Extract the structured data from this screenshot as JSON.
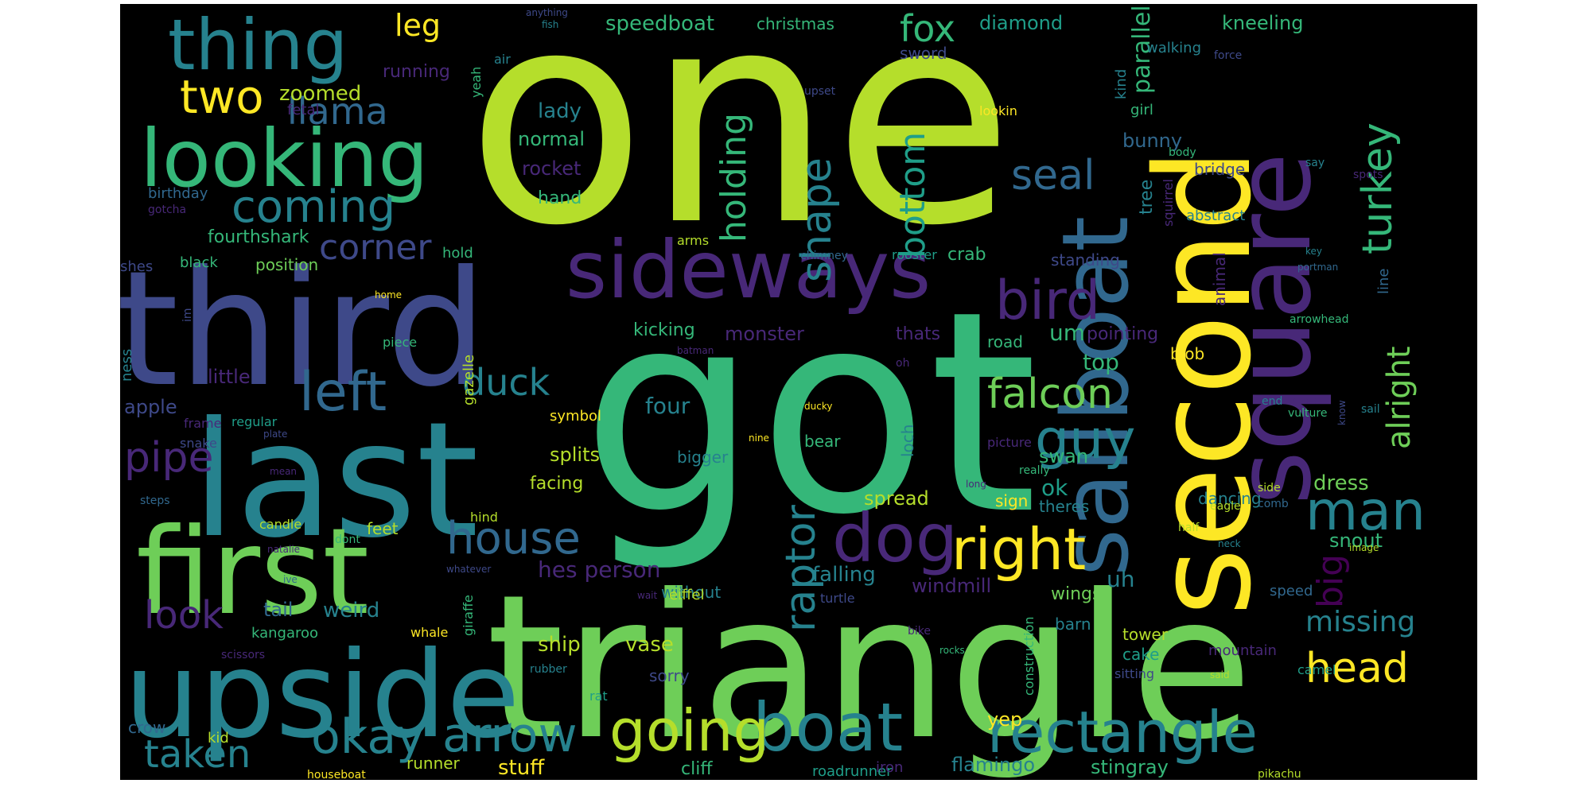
{
  "palette": {
    "yellow": "#fde725",
    "lime": "#b5de2b",
    "green": "#6ece58",
    "emerald": "#35b779",
    "teal": "#1f9e89",
    "cyan": "#26828e",
    "blue": "#31688e",
    "indigo": "#3e4989",
    "purple": "#482878",
    "dark_purple": "#440154"
  },
  "words": [
    {
      "text": "one",
      "color": "lime"
    },
    {
      "text": "got",
      "color": "emerald"
    },
    {
      "text": "triangle",
      "color": "green"
    },
    {
      "text": "third",
      "color": "indigo"
    },
    {
      "text": "last",
      "color": "cyan"
    },
    {
      "text": "second",
      "color": "yellow"
    },
    {
      "text": "first",
      "color": "green"
    },
    {
      "text": "upside",
      "color": "cyan"
    },
    {
      "text": "square",
      "color": "purple"
    },
    {
      "text": "sailboat",
      "color": "blue"
    },
    {
      "text": "sideways",
      "color": "purple"
    },
    {
      "text": "looking",
      "color": "emerald"
    },
    {
      "text": "thing",
      "color": "cyan"
    },
    {
      "text": "boat",
      "color": "cyan"
    },
    {
      "text": "rectangle",
      "color": "cyan"
    },
    {
      "text": "dog",
      "color": "purple"
    },
    {
      "text": "right",
      "color": "yellow"
    },
    {
      "text": "going",
      "color": "lime"
    },
    {
      "text": "guy",
      "color": "cyan"
    },
    {
      "text": "man",
      "color": "cyan"
    },
    {
      "text": "left",
      "color": "blue"
    },
    {
      "text": "arrow",
      "color": "cyan"
    },
    {
      "text": "okay",
      "color": "cyan"
    },
    {
      "text": "bird",
      "color": "purple"
    },
    {
      "text": "turkey",
      "color": "emerald"
    },
    {
      "text": "two",
      "color": "yellow"
    },
    {
      "text": "coming",
      "color": "cyan"
    },
    {
      "text": "house",
      "color": "blue"
    },
    {
      "text": "falcon",
      "color": "green"
    },
    {
      "text": "head",
      "color": "yellow"
    },
    {
      "text": "raptor",
      "color": "cyan"
    },
    {
      "text": "shape",
      "color": "cyan"
    },
    {
      "text": "seal",
      "color": "blue"
    },
    {
      "text": "bottom",
      "color": "teal"
    },
    {
      "text": "holding",
      "color": "emerald"
    },
    {
      "text": "fox",
      "color": "emerald"
    },
    {
      "text": "pipe",
      "color": "purple"
    },
    {
      "text": "look",
      "color": "purple"
    },
    {
      "text": "taken",
      "color": "cyan"
    },
    {
      "text": "duck",
      "color": "cyan"
    },
    {
      "text": "llama",
      "color": "blue"
    },
    {
      "text": "corner",
      "color": "indigo"
    },
    {
      "text": "big",
      "color": "dark_purple"
    },
    {
      "text": "alright",
      "color": "green"
    },
    {
      "text": "missing",
      "color": "cyan"
    },
    {
      "text": "leg",
      "color": "yellow"
    },
    {
      "text": "parallelogram",
      "color": "emerald"
    },
    {
      "text": "kneeling",
      "color": "emerald"
    },
    {
      "text": "speedboat",
      "color": "emerald"
    },
    {
      "text": "christmas",
      "color": "emerald"
    },
    {
      "text": "diamond",
      "color": "teal"
    },
    {
      "text": "sword",
      "color": "indigo"
    },
    {
      "text": "walking",
      "color": "cyan"
    },
    {
      "text": "running",
      "color": "purple"
    },
    {
      "text": "zoomed",
      "color": "lime"
    },
    {
      "text": "fetal",
      "color": "purple"
    },
    {
      "text": "lady",
      "color": "cyan"
    },
    {
      "text": "normal",
      "color": "emerald"
    },
    {
      "text": "rocket",
      "color": "purple"
    },
    {
      "text": "hand",
      "color": "emerald"
    },
    {
      "text": "bunny",
      "color": "blue"
    },
    {
      "text": "kind",
      "color": "cyan"
    },
    {
      "text": "girl",
      "color": "emerald"
    },
    {
      "text": "tree",
      "color": "cyan"
    },
    {
      "text": "squirrel",
      "color": "purple"
    },
    {
      "text": "bridge",
      "color": "indigo"
    },
    {
      "text": "abstract",
      "color": "cyan"
    },
    {
      "text": "animal",
      "color": "purple"
    },
    {
      "text": "standing",
      "color": "indigo"
    },
    {
      "text": "crab",
      "color": "emerald"
    },
    {
      "text": "fourthshark",
      "color": "emerald"
    },
    {
      "text": "position",
      "color": "green"
    },
    {
      "text": "black",
      "color": "emerald"
    },
    {
      "text": "shes",
      "color": "indigo"
    },
    {
      "text": "hold",
      "color": "emerald"
    },
    {
      "text": "arms",
      "color": "lime"
    },
    {
      "text": "kicking",
      "color": "emerald"
    },
    {
      "text": "monster",
      "color": "purple"
    },
    {
      "text": "thats",
      "color": "purple"
    },
    {
      "text": "road",
      "color": "emerald"
    },
    {
      "text": "um",
      "color": "emerald"
    },
    {
      "text": "pointing",
      "color": "purple"
    },
    {
      "text": "top",
      "color": "emerald"
    },
    {
      "text": "blob",
      "color": "yellow"
    },
    {
      "text": "line",
      "color": "blue"
    },
    {
      "text": "little",
      "color": "purple"
    },
    {
      "text": "apple",
      "color": "indigo"
    },
    {
      "text": "ness",
      "color": "cyan"
    },
    {
      "text": "gazelle",
      "color": "lime"
    },
    {
      "text": "four",
      "color": "cyan"
    },
    {
      "text": "symbol",
      "color": "yellow"
    },
    {
      "text": "splits",
      "color": "lime"
    },
    {
      "text": "bigger",
      "color": "cyan"
    },
    {
      "text": "bear",
      "color": "emerald"
    },
    {
      "text": "loch",
      "color": "cyan"
    },
    {
      "text": "swan",
      "color": "emerald"
    },
    {
      "text": "ok",
      "color": "teal"
    },
    {
      "text": "facing",
      "color": "lime"
    },
    {
      "text": "spread",
      "color": "lime"
    },
    {
      "text": "sign",
      "color": "yellow"
    },
    {
      "text": "theres",
      "color": "cyan"
    },
    {
      "text": "dancing",
      "color": "cyan"
    },
    {
      "text": "dress",
      "color": "green"
    },
    {
      "text": "snout",
      "color": "emerald"
    },
    {
      "text": "hes person",
      "color": "purple"
    },
    {
      "text": "falling",
      "color": "cyan"
    },
    {
      "text": "windmill",
      "color": "purple"
    },
    {
      "text": "uh",
      "color": "cyan"
    },
    {
      "text": "without",
      "color": "cyan"
    },
    {
      "text": "tail",
      "color": "blue"
    },
    {
      "text": "weird",
      "color": "cyan"
    },
    {
      "text": "kangaroo",
      "color": "emerald"
    },
    {
      "text": "ship",
      "color": "lime"
    },
    {
      "text": "vase",
      "color": "lime"
    },
    {
      "text": "sorry",
      "color": "indigo"
    },
    {
      "text": "wings",
      "color": "green"
    },
    {
      "text": "barn",
      "color": "cyan"
    },
    {
      "text": "tower",
      "color": "lime"
    },
    {
      "text": "cake",
      "color": "teal"
    },
    {
      "text": "mountain",
      "color": "purple"
    },
    {
      "text": "stuff",
      "color": "yellow"
    },
    {
      "text": "cliff",
      "color": "emerald"
    },
    {
      "text": "flamingo",
      "color": "cyan"
    },
    {
      "text": "stingray",
      "color": "emerald"
    },
    {
      "text": "runner",
      "color": "lime"
    },
    {
      "text": "roadrunner",
      "color": "teal"
    },
    {
      "text": "crow",
      "color": "blue"
    },
    {
      "text": "kid",
      "color": "lime"
    },
    {
      "text": "yep",
      "color": "yellow"
    },
    {
      "text": "speed",
      "color": "blue"
    },
    {
      "text": "feet",
      "color": "lime"
    },
    {
      "text": "birthday",
      "color": "blue"
    },
    {
      "text": "construction",
      "color": "emerald"
    },
    {
      "text": "iron",
      "color": "purple"
    },
    {
      "text": "eiffel",
      "color": "lime"
    },
    {
      "text": "turtle",
      "color": "indigo"
    },
    {
      "text": "giraffe",
      "color": "emerald"
    },
    {
      "text": "camel",
      "color": "teal"
    },
    {
      "text": "sitting",
      "color": "indigo"
    },
    {
      "text": "regular",
      "color": "teal"
    },
    {
      "text": "frame",
      "color": "purple"
    },
    {
      "text": "snake",
      "color": "indigo"
    },
    {
      "text": "piece",
      "color": "emerald"
    },
    {
      "text": "yeah",
      "color": "emerald"
    },
    {
      "text": "air",
      "color": "cyan"
    },
    {
      "text": "force",
      "color": "indigo"
    },
    {
      "text": "upset",
      "color": "indigo"
    },
    {
      "text": "lookin",
      "color": "yellow"
    },
    {
      "text": "body",
      "color": "emerald"
    },
    {
      "text": "spots",
      "color": "purple"
    },
    {
      "text": "say",
      "color": "cyan"
    },
    {
      "text": "chimney",
      "color": "blue"
    },
    {
      "text": "rooster",
      "color": "teal"
    },
    {
      "text": "key",
      "color": "cyan"
    },
    {
      "text": "portman",
      "color": "blue"
    },
    {
      "text": "arrowhead",
      "color": "emerald"
    },
    {
      "text": "gotcha",
      "color": "purple"
    },
    {
      "text": "home",
      "color": "yellow"
    },
    {
      "text": "im",
      "color": "indigo"
    },
    {
      "text": "batman",
      "color": "purple"
    },
    {
      "text": "oh",
      "color": "purple"
    },
    {
      "text": "ducky",
      "color": "yellow"
    },
    {
      "text": "nine",
      "color": "yellow"
    },
    {
      "text": "end",
      "color": "cyan"
    },
    {
      "text": "kinda",
      "color": "purple"
    },
    {
      "text": "vulture",
      "color": "emerald"
    },
    {
      "text": "sail",
      "color": "cyan"
    },
    {
      "text": "know",
      "color": "indigo"
    },
    {
      "text": "plate",
      "color": "indigo"
    },
    {
      "text": "mean",
      "color": "purple"
    },
    {
      "text": "picture",
      "color": "purple"
    },
    {
      "text": "really",
      "color": "emerald"
    },
    {
      "text": "long",
      "color": "purple"
    },
    {
      "text": "eagle",
      "color": "lime"
    },
    {
      "text": "side",
      "color": "lime"
    },
    {
      "text": "comb",
      "color": "blue"
    },
    {
      "text": "steps",
      "color": "blue"
    },
    {
      "text": "hind",
      "color": "lime"
    },
    {
      "text": "candle",
      "color": "lime"
    },
    {
      "text": "dont",
      "color": "emerald"
    },
    {
      "text": "half",
      "color": "lime"
    },
    {
      "text": "natalie",
      "color": "purple"
    },
    {
      "text": "whatever",
      "color": "indigo"
    },
    {
      "text": "neck",
      "color": "cyan"
    },
    {
      "text": "image",
      "color": "lime"
    },
    {
      "text": "ive",
      "color": "blue"
    },
    {
      "text": "wait",
      "color": "purple"
    },
    {
      "text": "bike",
      "color": "purple"
    },
    {
      "text": "whale",
      "color": "yellow"
    },
    {
      "text": "rocks",
      "color": "emerald"
    },
    {
      "text": "scissors",
      "color": "purple"
    },
    {
      "text": "rubber",
      "color": "cyan"
    },
    {
      "text": "rat",
      "color": "teal"
    },
    {
      "text": "said",
      "color": "lime"
    },
    {
      "text": "pikachu",
      "color": "lime"
    },
    {
      "text": "houseboat",
      "color": "yellow"
    },
    {
      "text": "anything",
      "color": "indigo"
    },
    {
      "text": "fish",
      "color": "cyan"
    }
  ]
}
